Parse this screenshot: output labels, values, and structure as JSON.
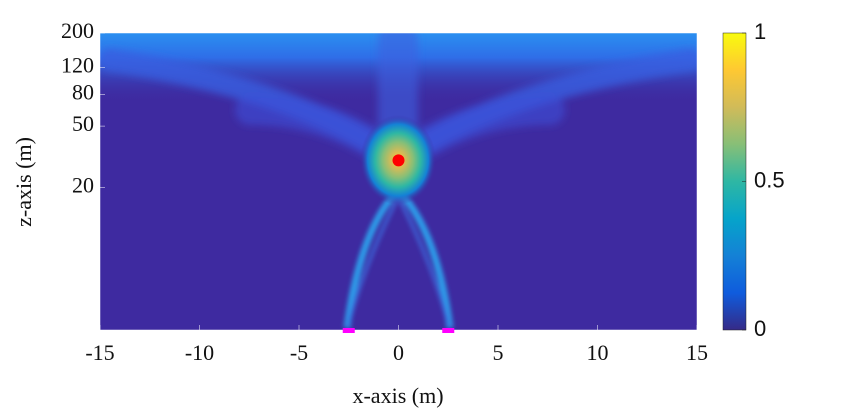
{
  "chart_data": {
    "type": "heatmap",
    "colormap": "parula",
    "xlabel": "x-axis (m)",
    "ylabel": "z-axis (m)",
    "xlim": [
      -15,
      15
    ],
    "xticks": [
      -15,
      -10,
      -5,
      0,
      5,
      10,
      15
    ],
    "ylim": [
      2.4,
      200
    ],
    "yticks": [
      20,
      50,
      80,
      120,
      200
    ],
    "yscale": "log",
    "clim": [
      0,
      1
    ],
    "cticks": [
      0,
      0.5,
      1
    ],
    "points": {
      "x": [
        0
      ],
      "y": [
        30
      ],
      "color": "#ff0000"
    },
    "sensors": {
      "x": [
        -2.5,
        2.5
      ],
      "y": [
        2.4,
        2.4
      ],
      "color": "#ff00ff"
    }
  }
}
